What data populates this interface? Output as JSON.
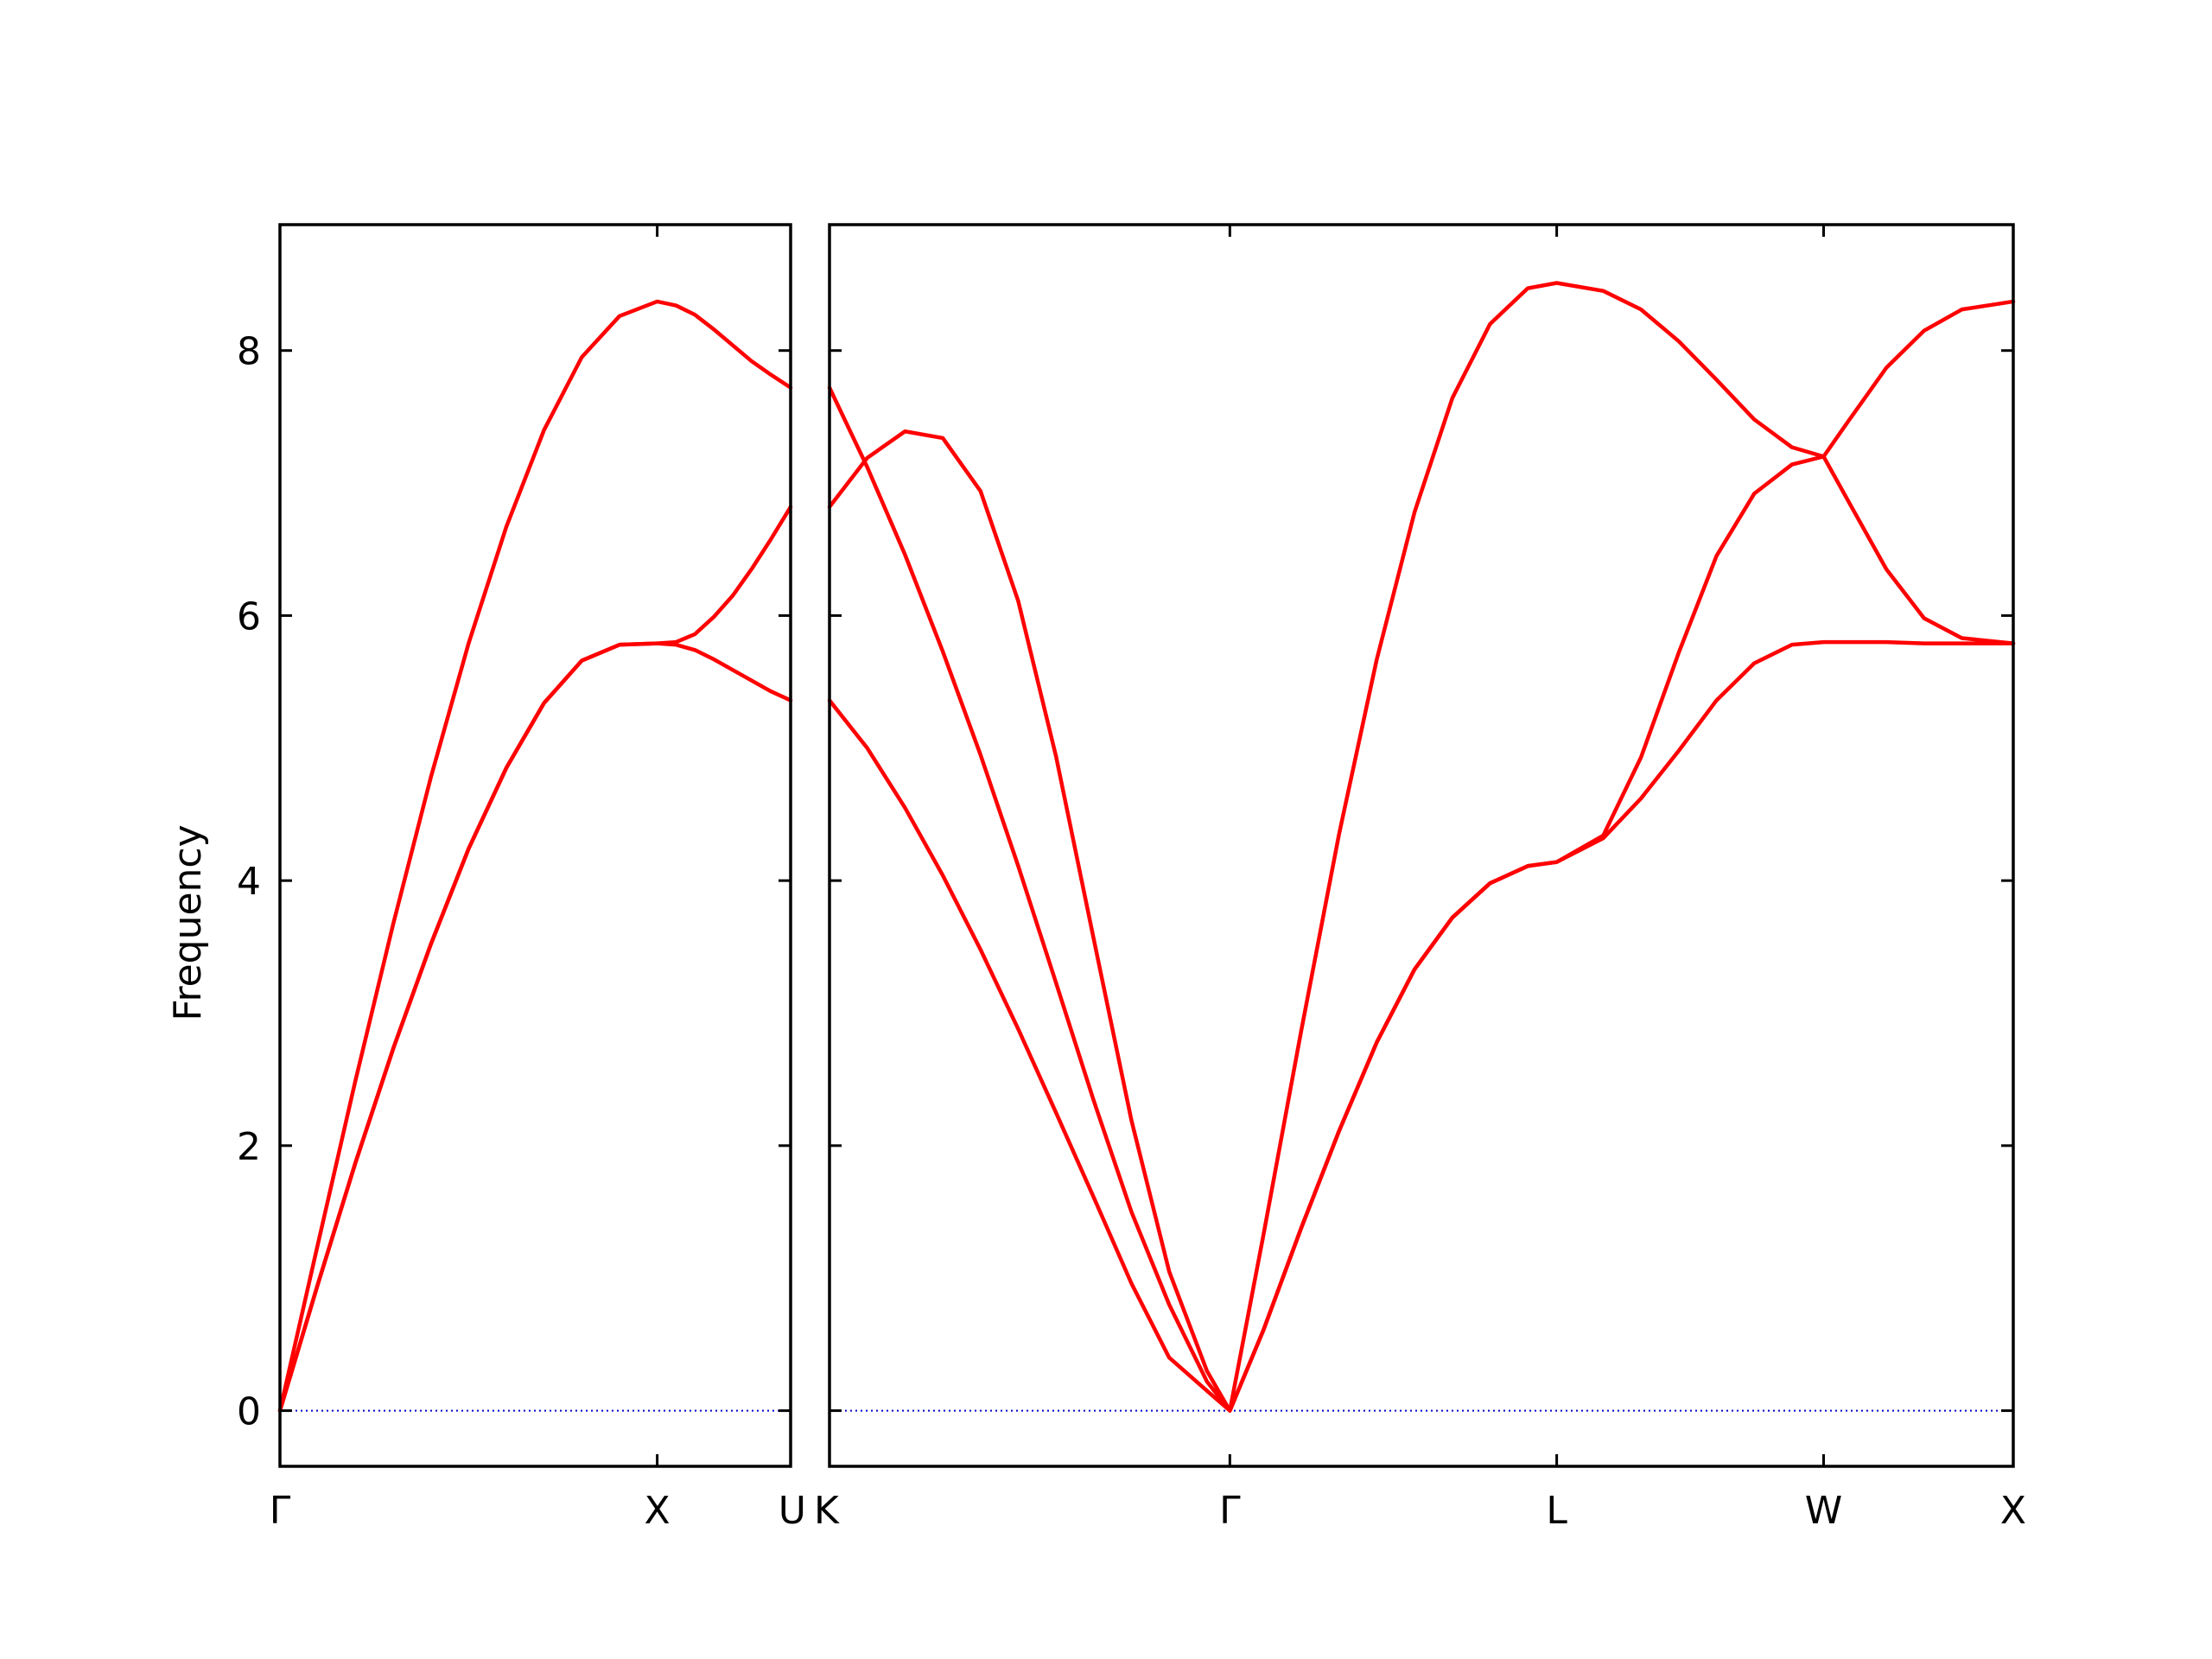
{
  "chart_data": {
    "type": "line",
    "title": "",
    "ylabel": "Frequency",
    "ylim": [
      -0.42,
      8.95
    ],
    "yticks": [
      0,
      2,
      4,
      6,
      8
    ],
    "grid": false,
    "legend": "none",
    "band_color": "#ff0000",
    "zero_line_color": "#0000cc",
    "panels": [
      {
        "xlim": [
          0,
          1.3536
        ],
        "xticks": [
          {
            "x": 0,
            "label": "Γ"
          },
          {
            "x": 1.0,
            "label": "X"
          },
          {
            "x": 1.3536,
            "label": "U"
          }
        ],
        "series": [
          {
            "x": [
              0,
              0.1,
              0.2,
              0.3,
              0.4,
              0.5,
              0.6,
              0.7,
              0.8,
              0.9,
              1.0,
              1.05,
              1.1,
              1.15,
              1.2,
              1.25,
              1.3,
              1.3536
            ],
            "values": [
              0,
              1.25,
              2.49,
              3.67,
              4.78,
              5.79,
              6.67,
              7.4,
              7.95,
              8.26,
              8.37,
              8.34,
              8.27,
              8.16,
              8.04,
              7.92,
              7.82,
              7.72
            ]
          },
          {
            "x": [
              0,
              0.1,
              0.2,
              0.3,
              0.4,
              0.5,
              0.6,
              0.7,
              0.8,
              0.9,
              1.0,
              1.05,
              1.1,
              1.15,
              1.2,
              1.25,
              1.3,
              1.3536
            ],
            "values": [
              0,
              0.95,
              1.87,
              2.73,
              3.52,
              4.24,
              4.85,
              5.34,
              5.66,
              5.78,
              5.79,
              5.8,
              5.86,
              5.99,
              6.15,
              6.35,
              6.57,
              6.82
            ]
          },
          {
            "x": [
              0,
              0.1,
              0.2,
              0.3,
              0.4,
              0.5,
              0.6,
              0.7,
              0.8,
              0.9,
              1.0,
              1.05,
              1.1,
              1.15,
              1.2,
              1.25,
              1.3,
              1.3536
            ],
            "values": [
              0,
              0.95,
              1.87,
              2.73,
              3.52,
              4.24,
              4.85,
              5.34,
              5.66,
              5.78,
              5.79,
              5.78,
              5.74,
              5.67,
              5.59,
              5.51,
              5.43,
              5.36
            ]
          }
        ]
      },
      {
        "xlim": [
          0,
          3.1363
        ],
        "xticks": [
          {
            "x": 0,
            "label": "K"
          },
          {
            "x": 1.0607,
            "label": "Γ"
          },
          {
            "x": 1.9267,
            "label": "L"
          },
          {
            "x": 2.6338,
            "label": "W"
          },
          {
            "x": 3.1363,
            "label": "X"
          }
        ],
        "series": [
          {
            "x": [
              0,
              0.1,
              0.2,
              0.3,
              0.4,
              0.5,
              0.6,
              0.7,
              0.8,
              0.9,
              1.0,
              1.0607,
              1.15,
              1.25,
              1.35,
              1.45,
              1.55,
              1.65,
              1.75,
              1.85,
              1.9267,
              2.05,
              2.15,
              2.25,
              2.35,
              2.45,
              2.55,
              2.6338,
              2.7,
              2.8,
              2.9,
              3.0,
              3.1363
            ],
            "values": [
              7.72,
              7.12,
              6.46,
              5.73,
              4.95,
              4.11,
              3.23,
              2.34,
              1.5,
              0.8,
              0.22,
              0,
              1.33,
              2.87,
              4.35,
              5.67,
              6.78,
              7.64,
              8.2,
              8.47,
              8.51,
              8.45,
              8.31,
              8.07,
              7.78,
              7.48,
              7.27,
              7.2,
              7.47,
              7.87,
              8.15,
              8.31,
              8.37
            ]
          },
          {
            "x": [
              0,
              0.1,
              0.2,
              0.3,
              0.4,
              0.5,
              0.6,
              0.7,
              0.8,
              0.9,
              1.0,
              1.0607,
              1.15,
              1.25,
              1.35,
              1.45,
              1.55,
              1.65,
              1.75,
              1.85,
              1.9267,
              2.05,
              2.15,
              2.25,
              2.35,
              2.45,
              2.55,
              2.6338,
              2.7,
              2.8,
              2.9,
              3.0,
              3.1363
            ],
            "values": [
              6.82,
              7.19,
              7.39,
              7.34,
              6.94,
              6.11,
              4.94,
              3.56,
              2.19,
              1.05,
              0.3,
              0,
              0.61,
              1.38,
              2.11,
              2.78,
              3.33,
              3.72,
              3.98,
              4.11,
              4.14,
              4.34,
              4.93,
              5.72,
              6.45,
              6.92,
              7.14,
              7.2,
              6.86,
              6.35,
              5.98,
              5.83,
              5.79
            ]
          },
          {
            "x": [
              0,
              0.1,
              0.2,
              0.3,
              0.4,
              0.5,
              0.6,
              0.7,
              0.8,
              0.9,
              1.0,
              1.0607,
              1.15,
              1.25,
              1.35,
              1.45,
              1.55,
              1.65,
              1.75,
              1.85,
              1.9267,
              2.05,
              2.15,
              2.25,
              2.35,
              2.45,
              2.55,
              2.6338,
              2.7,
              2.8,
              2.9,
              3.0,
              3.1363
            ],
            "values": [
              5.36,
              5.0,
              4.55,
              4.04,
              3.48,
              2.88,
              2.25,
              1.61,
              0.96,
              0.4,
              0.15,
              0,
              0.61,
              1.38,
              2.11,
              2.78,
              3.33,
              3.72,
              3.98,
              4.11,
              4.14,
              4.32,
              4.62,
              4.98,
              5.36,
              5.64,
              5.78,
              5.8,
              5.8,
              5.8,
              5.79,
              5.79,
              5.79
            ]
          }
        ]
      }
    ]
  }
}
